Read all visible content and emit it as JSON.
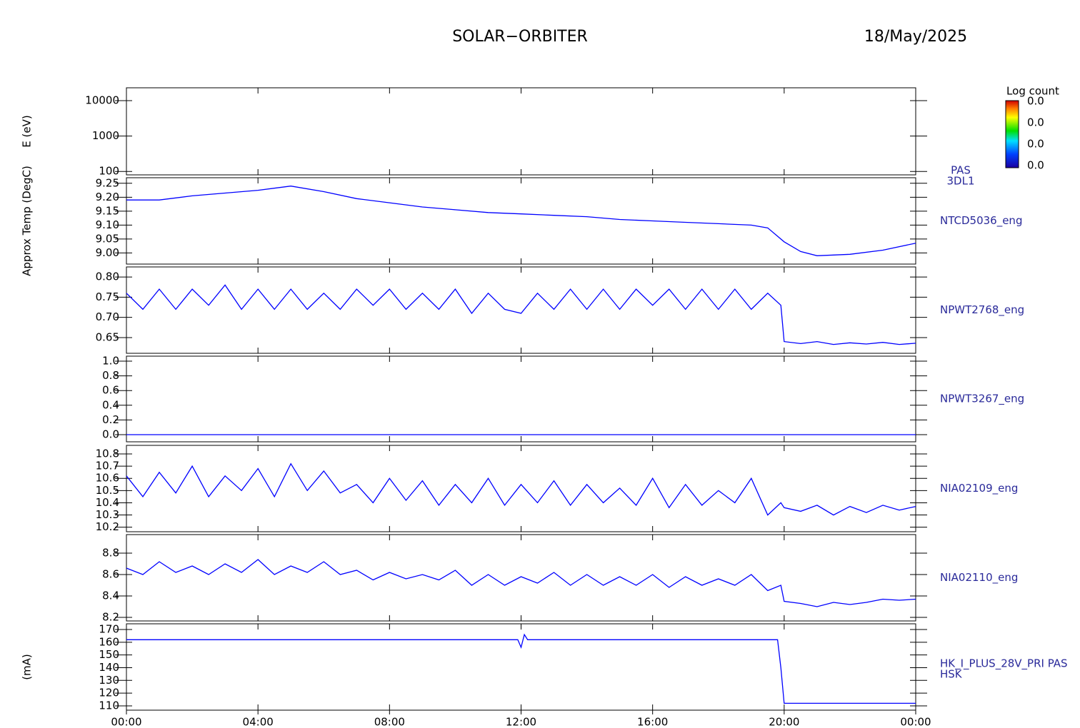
{
  "title": "SOLAR−ORBITER",
  "date": "18/May/2025",
  "colorbar": {
    "label": "Log count",
    "ticks": [
      "0.0",
      "0.0",
      "0.0",
      "0.0"
    ]
  },
  "chart_data": [
    {
      "type": "spectrogram",
      "label": [
        "PAS",
        "3DL1"
      ],
      "ylabel": "E (eV)",
      "log": true,
      "ylim": [
        80,
        23000
      ],
      "yticks": [
        100,
        1000,
        10000
      ],
      "xlim": [
        0,
        24
      ]
    },
    {
      "type": "line",
      "label": [
        "NTCD5036_eng"
      ],
      "ylabel": "Approx Temp (DegC)",
      "ylim": [
        8.96,
        9.27
      ],
      "yticks": [
        {
          "value": 9,
          "label": "9.00"
        },
        9.05,
        {
          "value": 9.1,
          "label": "9.10"
        },
        9.15,
        {
          "value": 9.2,
          "label": "9.20"
        },
        9.25
      ],
      "xlim": [
        0,
        24
      ],
      "x": [
        0,
        1,
        2,
        3,
        4,
        5,
        6,
        7,
        8,
        9,
        10,
        11,
        12,
        13,
        14,
        15,
        16,
        17,
        18,
        19,
        19.5,
        20,
        20.5,
        21,
        22,
        23,
        24
      ],
      "series": [
        {
          "color": "#0000ff",
          "values": [
            9.19,
            9.19,
            9.205,
            9.215,
            9.225,
            9.24,
            9.22,
            9.195,
            9.18,
            9.165,
            9.155,
            9.145,
            9.14,
            9.135,
            9.13,
            9.12,
            9.115,
            9.11,
            9.105,
            9.1,
            9.09,
            9.04,
            9.005,
            8.99,
            8.995,
            9.01,
            9.035
          ]
        }
      ]
    },
    {
      "type": "line",
      "label": [
        "NPWT2768_eng"
      ],
      "ylim": [
        0.611,
        0.825
      ],
      "yticks": [
        0.65,
        {
          "value": 0.7,
          "label": "0.70"
        },
        0.75,
        {
          "value": 0.8,
          "label": "0.80"
        }
      ],
      "xlim": [
        0,
        24
      ],
      "x": [
        0,
        0.5,
        1,
        1.5,
        2,
        2.5,
        3,
        3.5,
        4,
        4.5,
        5,
        5.5,
        6,
        6.5,
        7,
        7.5,
        8,
        8.5,
        9,
        9.5,
        10,
        10.5,
        11,
        11.5,
        12,
        12.5,
        13,
        13.5,
        14,
        14.5,
        15,
        15.5,
        16,
        16.5,
        17,
        17.5,
        18,
        18.5,
        19,
        19.5,
        19.9,
        20,
        20.5,
        21,
        21.5,
        22,
        22.5,
        23,
        23.5,
        24
      ],
      "series": [
        {
          "color": "#0000ff",
          "values": [
            0.76,
            0.72,
            0.77,
            0.72,
            0.77,
            0.73,
            0.78,
            0.72,
            0.77,
            0.72,
            0.77,
            0.72,
            0.76,
            0.72,
            0.77,
            0.73,
            0.77,
            0.72,
            0.76,
            0.72,
            0.77,
            0.71,
            0.76,
            0.72,
            0.71,
            0.76,
            0.72,
            0.77,
            0.72,
            0.77,
            0.72,
            0.77,
            0.73,
            0.77,
            0.72,
            0.77,
            0.72,
            0.77,
            0.72,
            0.76,
            0.73,
            0.64,
            0.635,
            0.64,
            0.633,
            0.637,
            0.634,
            0.638,
            0.633,
            0.636
          ]
        }
      ]
    },
    {
      "type": "line",
      "label": [
        "NPWT3267_eng"
      ],
      "ylim": [
        -0.097,
        1.068
      ],
      "yticks": [
        {
          "value": 0,
          "label": "0.0"
        },
        0.2,
        0.4,
        0.6,
        0.8,
        {
          "value": 1,
          "label": "1.0"
        }
      ],
      "xlim": [
        0,
        24
      ],
      "x": [
        0,
        24
      ],
      "series": [
        {
          "color": "#0000ff",
          "values": [
            0,
            0
          ]
        }
      ]
    },
    {
      "type": "line",
      "label": [
        "NIA02109_eng"
      ],
      "ylim": [
        10.163,
        10.87
      ],
      "yticks": [
        10.2,
        10.3,
        10.4,
        10.5,
        10.6,
        10.7,
        10.8
      ],
      "xlim": [
        0,
        24
      ],
      "x": [
        0,
        0.5,
        1,
        1.5,
        2,
        2.5,
        3,
        3.5,
        4,
        4.5,
        5,
        5.5,
        6,
        6.5,
        7,
        7.5,
        8,
        8.5,
        9,
        9.5,
        10,
        10.5,
        11,
        11.5,
        12,
        12.5,
        13,
        13.5,
        14,
        14.5,
        15,
        15.5,
        16,
        16.5,
        17,
        17.5,
        18,
        18.5,
        19,
        19.5,
        19.9,
        20,
        20.5,
        21,
        21.5,
        22,
        22.5,
        23,
        23.5,
        24
      ],
      "series": [
        {
          "color": "#0000ff",
          "values": [
            10.62,
            10.45,
            10.65,
            10.48,
            10.7,
            10.45,
            10.62,
            10.5,
            10.68,
            10.45,
            10.72,
            10.5,
            10.66,
            10.48,
            10.55,
            10.4,
            10.6,
            10.42,
            10.58,
            10.38,
            10.55,
            10.4,
            10.6,
            10.38,
            10.55,
            10.4,
            10.58,
            10.38,
            10.55,
            10.4,
            10.52,
            10.38,
            10.6,
            10.36,
            10.55,
            10.38,
            10.5,
            10.4,
            10.6,
            10.3,
            10.4,
            10.36,
            10.33,
            10.38,
            10.3,
            10.37,
            10.32,
            10.38,
            10.34,
            10.37
          ]
        }
      ]
    },
    {
      "type": "line",
      "label": [
        "NIA02110_eng"
      ],
      "ylim": [
        8.167,
        8.973
      ],
      "yticks": [
        8.2,
        8.4,
        8.6,
        8.8
      ],
      "xlim": [
        0,
        24
      ],
      "x": [
        0,
        0.5,
        1,
        1.5,
        2,
        2.5,
        3,
        3.5,
        4,
        4.5,
        5,
        5.5,
        6,
        6.5,
        7,
        7.5,
        8,
        8.5,
        9,
        9.5,
        10,
        10.5,
        11,
        11.5,
        12,
        12.5,
        13,
        13.5,
        14,
        14.5,
        15,
        15.5,
        16,
        16.5,
        17,
        17.5,
        18,
        18.5,
        19,
        19.5,
        19.9,
        20,
        20.5,
        21,
        21.5,
        22,
        22.5,
        23,
        23.5,
        24
      ],
      "series": [
        {
          "color": "#0000ff",
          "values": [
            8.66,
            8.6,
            8.72,
            8.62,
            8.68,
            8.6,
            8.7,
            8.62,
            8.74,
            8.6,
            8.68,
            8.62,
            8.72,
            8.6,
            8.64,
            8.55,
            8.62,
            8.56,
            8.6,
            8.55,
            8.64,
            8.5,
            8.6,
            8.5,
            8.58,
            8.52,
            8.62,
            8.5,
            8.6,
            8.5,
            8.58,
            8.5,
            8.6,
            8.48,
            8.58,
            8.5,
            8.56,
            8.5,
            8.6,
            8.45,
            8.5,
            8.35,
            8.33,
            8.3,
            8.34,
            8.32,
            8.34,
            8.37,
            8.36,
            8.37
          ]
        }
      ]
    },
    {
      "type": "line",
      "label": [
        "HK_I_PLUS_28V_PRI PAS",
        "HSK"
      ],
      "ylabel": "(mA)",
      "ylim": [
        106.6,
        174.5
      ],
      "yticks": [
        110,
        120,
        130,
        140,
        150,
        160,
        170
      ],
      "xlim": [
        0,
        24
      ],
      "xticks": [
        {
          "value": 0,
          "label": "00:00"
        },
        {
          "value": 4,
          "label": "04:00"
        },
        {
          "value": 8,
          "label": "08:00"
        },
        {
          "value": 12,
          "label": "12:00"
        },
        {
          "value": 16,
          "label": "16:00"
        },
        {
          "value": 20,
          "label": "20:00"
        },
        {
          "value": 24,
          "label": "00:00"
        }
      ],
      "x": [
        0,
        11.9,
        12,
        12.1,
        12.2,
        19.8,
        19.9,
        20,
        24
      ],
      "series": [
        {
          "color": "#0000ff",
          "values": [
            162,
            162,
            156,
            166,
            162,
            162,
            140,
            112,
            112
          ]
        }
      ]
    }
  ]
}
